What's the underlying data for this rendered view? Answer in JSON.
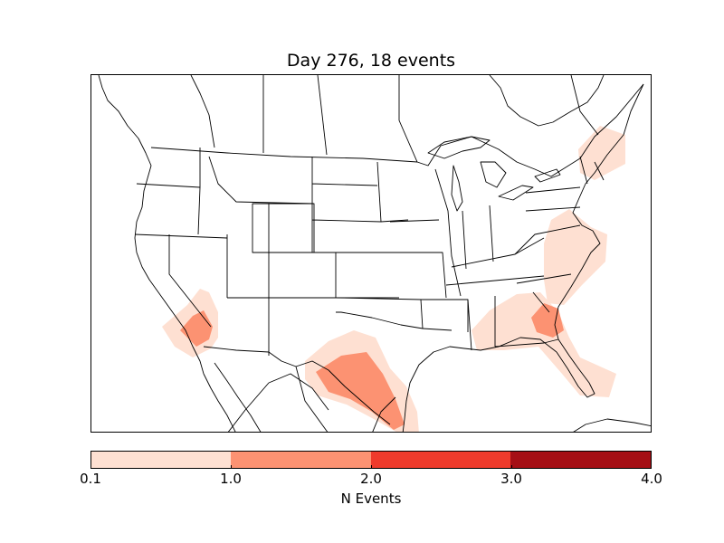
{
  "title": "Day 276, 18 events",
  "colorbar": {
    "label": "N Events",
    "ticks": [
      "0.1",
      "1.0",
      "2.0",
      "3.0",
      "4.0"
    ],
    "colors": [
      "#fee0d2",
      "#fc9272",
      "#ef3b2c",
      "#a50f15"
    ]
  },
  "map": {
    "projection": "lambert-conformal",
    "region": "North America (CONUS)",
    "event_regions": [
      {
        "name": "southern-california-nevada",
        "level_bins": [
          0,
          1
        ]
      },
      {
        "name": "south-texas-gulf-coast",
        "level_bins": [
          0,
          1
        ]
      },
      {
        "name": "southeast-georgia-florida",
        "level_bins": [
          0,
          1
        ]
      },
      {
        "name": "carolinas-virginia-coast",
        "level_bins": [
          0
        ]
      },
      {
        "name": "new-england",
        "level_bins": [
          0
        ]
      }
    ]
  }
}
